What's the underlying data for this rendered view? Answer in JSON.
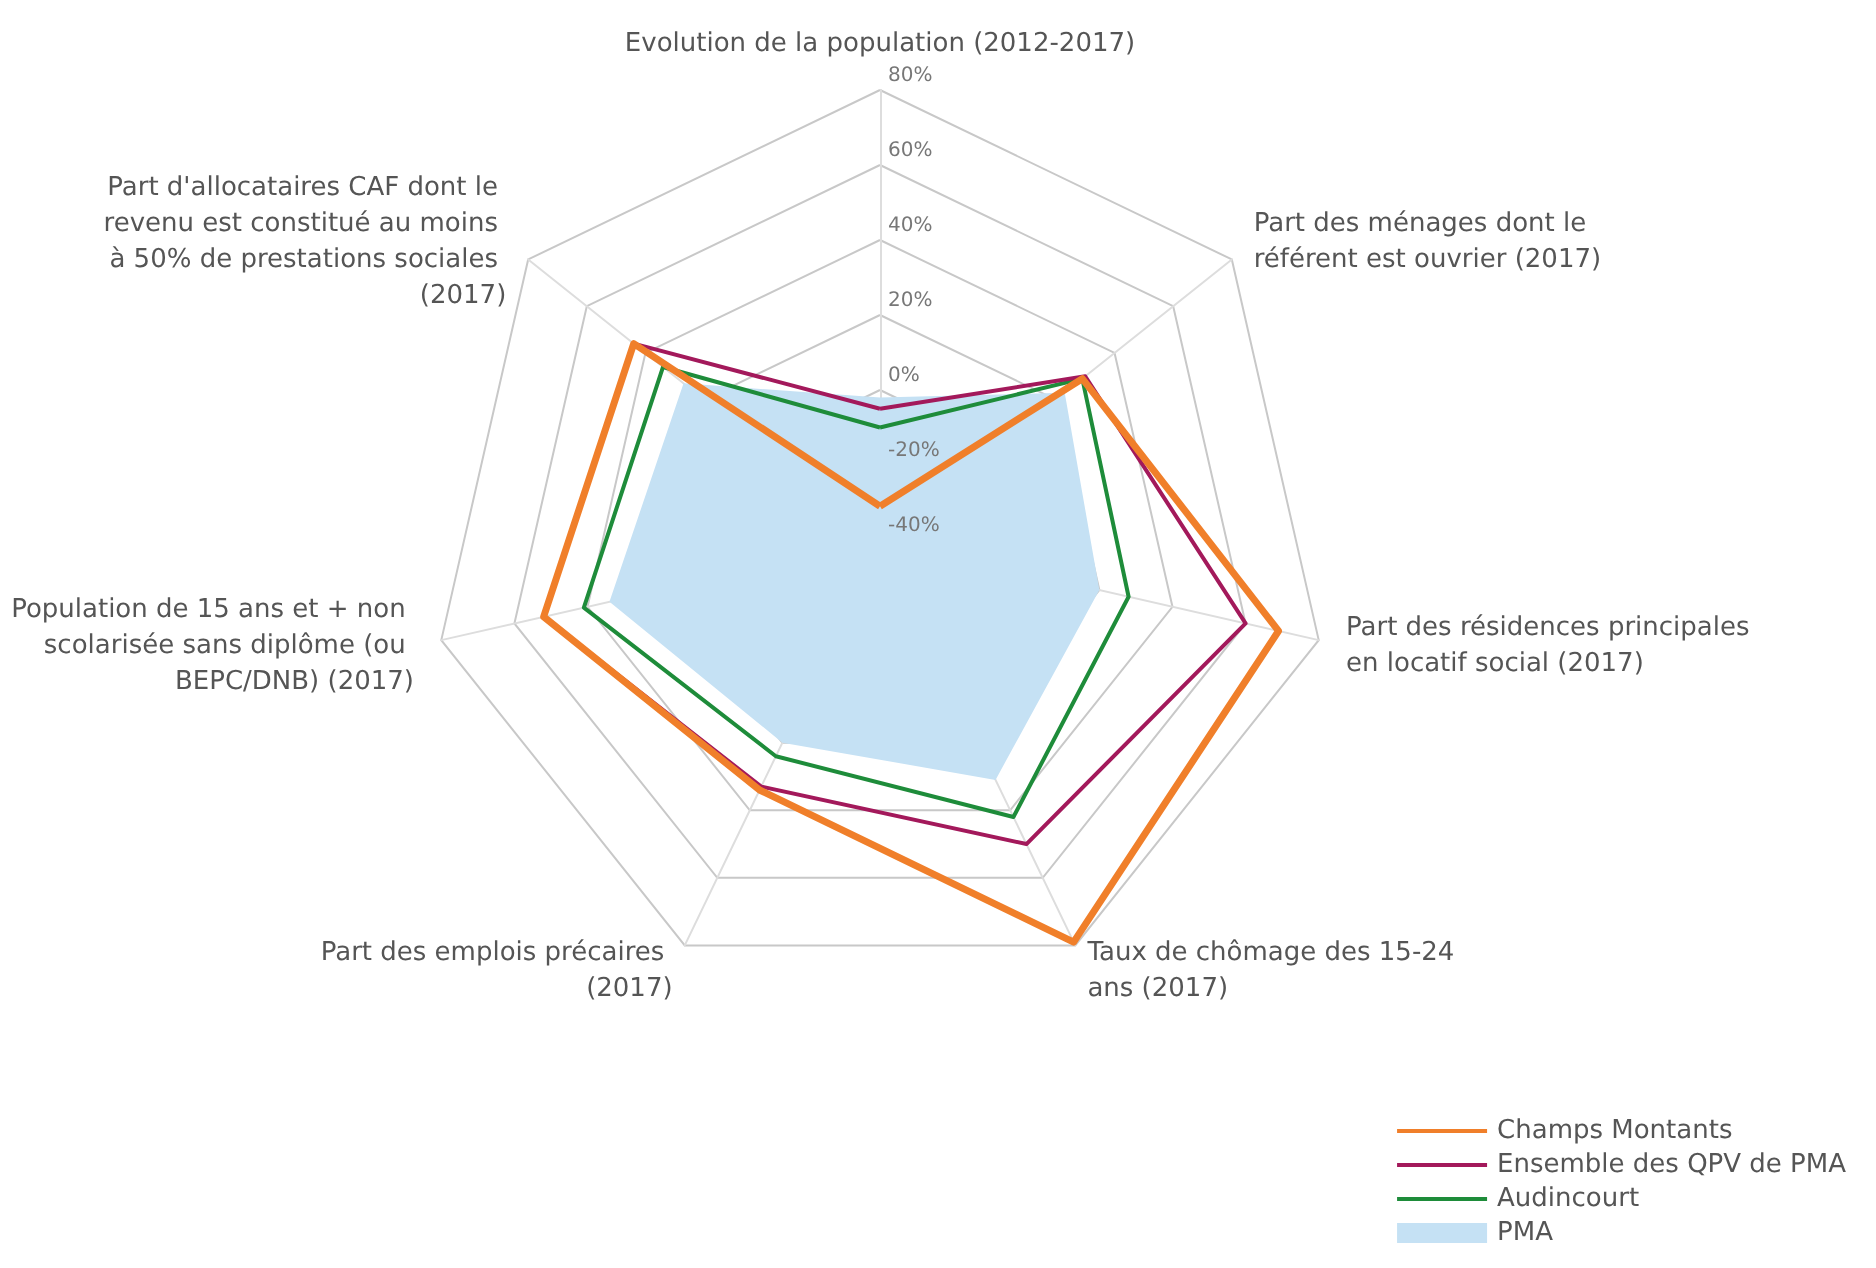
{
  "chart_data": {
    "type": "radar",
    "categories": [
      "Evolution de la population (2012-2017)",
      "Part des ménages dont le référent est ouvrier (2017)",
      "Part des résidences principales en locatif social (2017)",
      "Taux de chômage des 15-24 ans (2017)",
      "Part des emplois précaires (2017)",
      "Population de 15 ans et + non scolarisée sans diplôme (ou BEPC/DNB) (2017)",
      "Part d'allocataires CAF dont le revenu est constitué au moins à 50% de prestations sociales (2017)"
    ],
    "series": [
      {
        "name": "PMA",
        "type": "area",
        "color": "#c5e1f4",
        "values": [
          -2,
          23,
          20,
          31,
          20,
          34,
          27
        ]
      },
      {
        "name": "Audincourt",
        "color": "#1e8c3a",
        "values": [
          -10,
          29,
          28,
          42,
          24,
          41,
          34
        ]
      },
      {
        "name": "Ensemble des QPV de PMA",
        "color": "#a3195b",
        "values": [
          -5,
          30,
          60,
          50,
          33,
          52,
          44
        ]
      },
      {
        "name": "Champs Montants",
        "color": "#f07f2a",
        "values": [
          -31,
          29,
          69,
          79,
          34,
          52,
          44
        ]
      }
    ],
    "ylim": [
      -40,
      80
    ],
    "yticks": [
      {
        "value": -40,
        "label": "-40%"
      },
      {
        "value": -20,
        "label": "-20%"
      },
      {
        "value": 0,
        "label": "0%"
      },
      {
        "value": 20,
        "label": "20%"
      },
      {
        "value": 40,
        "label": "40%"
      },
      {
        "value": 60,
        "label": "60%"
      },
      {
        "value": 80,
        "label": "80%"
      }
    ],
    "grid": true,
    "legend": "bottom right",
    "marker": "none"
  }
}
